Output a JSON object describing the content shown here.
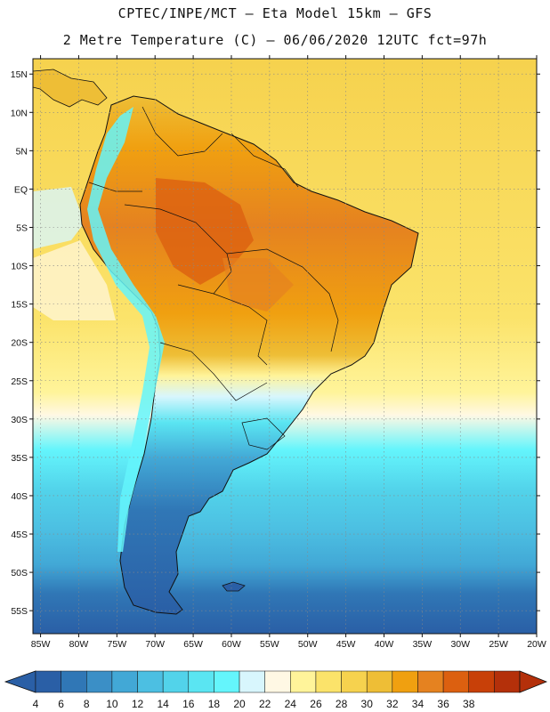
{
  "title": {
    "line1": "CPTEC/INPE/MCT –  Eta Model 15km – GFS",
    "line2": "2 Metre Temperature (C) – 06/06/2020 12UTC fct=97h"
  },
  "map": {
    "lat_labels": [
      "15N",
      "10N",
      "5N",
      "EQ",
      "5S",
      "10S",
      "15S",
      "20S",
      "25S",
      "30S",
      "35S",
      "40S",
      "45S",
      "50S",
      "55S"
    ],
    "lon_labels": [
      "85W",
      "80W",
      "75W",
      "70W",
      "65W",
      "60W",
      "55W",
      "50W",
      "45W",
      "40W",
      "35W",
      "30W",
      "25W",
      "20W"
    ],
    "lat_range": [
      17,
      -58
    ],
    "lon_range": [
      -86,
      -20
    ]
  },
  "legend": {
    "values": [
      "4",
      "6",
      "8",
      "10",
      "12",
      "14",
      "16",
      "18",
      "20",
      "22",
      "24",
      "26",
      "28",
      "30",
      "32",
      "34",
      "36",
      "38"
    ],
    "colors": [
      "#2a5fa6",
      "#3077b6",
      "#3b8fc6",
      "#42a8d6",
      "#4cbfe2",
      "#52d3ea",
      "#5ae5f2",
      "#64f5fc",
      "#d8f6fd",
      "#fff8e4",
      "#fff49a",
      "#fbe36a",
      "#f6d24e",
      "#eebe36",
      "#f0a010",
      "#e58220",
      "#dc6010",
      "#c84008",
      "#b4300a"
    ],
    "under_color": "#2a5fa6",
    "over_color": "#b4300a"
  }
}
